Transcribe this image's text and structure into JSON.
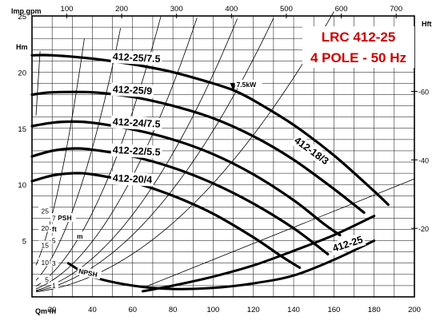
{
  "chart_data": {
    "type": "line",
    "title": "LRC 412-25",
    "subtitle": "4 POLE - 50 Hz",
    "accent_color": "#cc0000",
    "x_axis": {
      "unit_label": "Qm³/h",
      "range": [
        10,
        200
      ],
      "ticks": [
        "20",
        "40",
        "60",
        "80",
        "100",
        "120",
        "140",
        "160",
        "180",
        "200"
      ]
    },
    "x2_axis": {
      "unit_label": "Imp gpm",
      "ticks": [
        "100",
        "200",
        "300",
        "400",
        "500",
        "600",
        "700"
      ]
    },
    "y_axis": {
      "unit_label": "Hm",
      "range": [
        0,
        25
      ],
      "ticks": [
        "5",
        "10",
        "15",
        "20",
        "25"
      ]
    },
    "y2_axis": {
      "unit_label": "Hft",
      "ticks": [
        "20",
        "40",
        "60"
      ]
    },
    "npsh_axis": {
      "label": "NPSH",
      "ft_label": "ft",
      "m_label": "m",
      "ft_ticks": [
        "5",
        "10",
        "15",
        "20",
        "25"
      ],
      "m_ticks": [
        "1",
        "3",
        "5",
        "7"
      ]
    },
    "grid": true,
    "series": [
      {
        "name": "412-25/7.5",
        "x": [
          10,
          20,
          40,
          60,
          80,
          100,
          110
        ],
        "y": [
          21.5,
          21.5,
          21.2,
          20.7,
          20.0,
          19.0,
          18.4
        ]
      },
      {
        "name": "412-25/9",
        "x": [
          110,
          120,
          140,
          160,
          180,
          187
        ],
        "y": [
          18.4,
          17.5,
          15.3,
          12.6,
          9.4,
          8.2
        ]
      },
      {
        "name": "412-24/7.5",
        "x": [
          10,
          20,
          40,
          60,
          80,
          100,
          120,
          140,
          160,
          175
        ],
        "y": [
          18.0,
          18.2,
          18.2,
          17.8,
          17.0,
          15.9,
          14.3,
          12.2,
          9.6,
          7.5
        ]
      },
      {
        "name": "412-22/5.5",
        "x": [
          10,
          20,
          30,
          40,
          60,
          80,
          100,
          120,
          140,
          155,
          163
        ],
        "y": [
          15.2,
          15.5,
          15.6,
          15.5,
          14.9,
          14.0,
          12.7,
          10.9,
          8.6,
          6.5,
          5.5
        ]
      },
      {
        "name": "412-20/4",
        "x": [
          10,
          20,
          30,
          40,
          60,
          80,
          100,
          120,
          140,
          157
        ],
        "y": [
          12.5,
          13.0,
          13.2,
          13.1,
          12.5,
          11.5,
          10.1,
          8.3,
          6.1,
          3.8
        ]
      },
      {
        "name": "412-18/3",
        "x": [
          10,
          20,
          30,
          40,
          60,
          80,
          100,
          120,
          134,
          143
        ],
        "y": [
          10.3,
          10.8,
          11.0,
          10.9,
          10.2,
          9.0,
          7.4,
          5.3,
          3.6,
          2.6
        ]
      },
      {
        "name": "412-25",
        "x": [
          65,
          80,
          100,
          120,
          140,
          160,
          180
        ],
        "y": [
          0.5,
          1.0,
          1.8,
          2.8,
          4.1,
          5.5,
          7.2
        ]
      }
    ],
    "npsh_curve": {
      "name": "NPSH",
      "x": [
        28,
        40,
        60,
        80,
        100,
        120,
        140,
        160,
        180
      ],
      "y": [
        3.0,
        1.8,
        1.0,
        0.7,
        0.8,
        1.2,
        1.9,
        3.3,
        5.0
      ]
    },
    "annotations": [
      {
        "text": "7.5kW",
        "x": 110,
        "y": 18.4
      }
    ]
  }
}
